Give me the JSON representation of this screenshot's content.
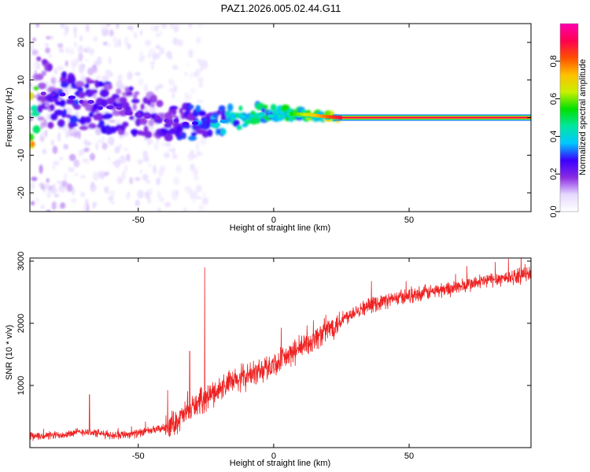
{
  "title": "PAZ1.2026.005.02.44.G11",
  "chart_data": [
    {
      "type": "heatmap",
      "name": "spectrogram",
      "xlabel": "Height of straight line (km)",
      "ylabel": "Frequency (Hz)",
      "xlim": [
        -90,
        95
      ],
      "ylim": [
        -25,
        25
      ],
      "xticks": [
        -50,
        0,
        50
      ],
      "yticks": [
        -20,
        -10,
        0,
        10,
        20
      ],
      "colorbar": {
        "label": "Normalized spectral amplitude",
        "range": [
          0,
          1
        ],
        "ticks": [
          0.0,
          0.2,
          0.4,
          0.6,
          0.8
        ],
        "tick_labels": [
          "0.0",
          "0.2",
          "0.4",
          "0.6",
          "0.8"
        ],
        "colormap": [
          "#ffffff",
          "#e6d8ff",
          "#8a2be2",
          "#3a00ff",
          "#00c8ff",
          "#00e6a0",
          "#00e000",
          "#c8f000",
          "#ffc000",
          "#ff5000",
          "#ff0050",
          "#ff00b0"
        ]
      },
      "ridge": [
        {
          "x": -88,
          "f": 7.5,
          "a": 0.25
        },
        {
          "x": -82,
          "f": 6.0,
          "a": 0.3
        },
        {
          "x": -76,
          "f": 5.5,
          "a": 0.4
        },
        {
          "x": -70,
          "f": 4.5,
          "a": 0.3
        },
        {
          "x": -64,
          "f": 3.0,
          "a": 0.35
        },
        {
          "x": -58,
          "f": 2.5,
          "a": 0.3
        },
        {
          "x": -52,
          "f": 1.5,
          "a": 0.3
        },
        {
          "x": -46,
          "f": 0.5,
          "a": 0.28
        },
        {
          "x": -40,
          "f": -1.0,
          "a": 0.3
        },
        {
          "x": -34,
          "f": -1.5,
          "a": 0.35
        },
        {
          "x": -28,
          "f": -1.0,
          "a": 0.4
        },
        {
          "x": -22,
          "f": -0.5,
          "a": 0.45
        },
        {
          "x": -18,
          "f": -0.8,
          "a": 0.5
        },
        {
          "x": -12,
          "f": 0.5,
          "a": 0.55
        },
        {
          "x": -6,
          "f": 1.2,
          "a": 0.6
        },
        {
          "x": 0,
          "f": 0.8,
          "a": 0.6
        },
        {
          "x": 6,
          "f": 1.0,
          "a": 0.65
        },
        {
          "x": 12,
          "f": 0.8,
          "a": 0.7
        },
        {
          "x": 18,
          "f": 0.3,
          "a": 0.75
        },
        {
          "x": 24,
          "f": 0.0,
          "a": 0.9
        },
        {
          "x": 40,
          "f": 0.0,
          "a": 0.97
        },
        {
          "x": 60,
          "f": 0.0,
          "a": 0.97
        },
        {
          "x": 80,
          "f": 0.0,
          "a": 0.97
        },
        {
          "x": 95,
          "f": 0.0,
          "a": 0.97
        }
      ]
    },
    {
      "type": "line",
      "name": "snr",
      "xlabel": "Height of straight line (km)",
      "ylabel": "SNR (10 * v/v)",
      "xlim": [
        -90,
        95
      ],
      "ylim": [
        0,
        3050
      ],
      "xticks": [
        -50,
        0,
        50
      ],
      "yticks": [
        1000,
        2000,
        3000
      ],
      "color": "#ee2222",
      "trend": [
        {
          "x": -90,
          "y": 180
        },
        {
          "x": -80,
          "y": 200
        },
        {
          "x": -70,
          "y": 260
        },
        {
          "x": -60,
          "y": 200
        },
        {
          "x": -50,
          "y": 230
        },
        {
          "x": -40,
          "y": 320
        },
        {
          "x": -35,
          "y": 450
        },
        {
          "x": -30,
          "y": 650
        },
        {
          "x": -25,
          "y": 800
        },
        {
          "x": -20,
          "y": 950
        },
        {
          "x": -10,
          "y": 1150
        },
        {
          "x": 0,
          "y": 1330
        },
        {
          "x": 10,
          "y": 1600
        },
        {
          "x": 20,
          "y": 1900
        },
        {
          "x": 30,
          "y": 2200
        },
        {
          "x": 40,
          "y": 2350
        },
        {
          "x": 50,
          "y": 2450
        },
        {
          "x": 60,
          "y": 2520
        },
        {
          "x": 70,
          "y": 2600
        },
        {
          "x": 80,
          "y": 2700
        },
        {
          "x": 90,
          "y": 2760
        },
        {
          "x": 95,
          "y": 2800
        }
      ],
      "spikes": [
        {
          "x": -25.5,
          "y": 2900
        },
        {
          "x": -31,
          "y": 1550
        },
        {
          "x": -68,
          "y": 850
        }
      ]
    }
  ]
}
